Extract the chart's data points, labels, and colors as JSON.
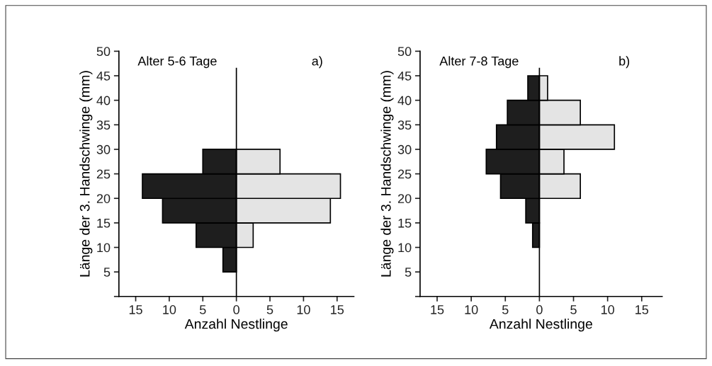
{
  "chart_data": [
    {
      "type": "bar",
      "orientation": "horizontal",
      "stacked": true,
      "title": "Alter 5-6 Tage",
      "annotations": [
        "a)"
      ],
      "xlabel": "Anzahl Nestlinge",
      "ylabel": "Länge der 3. Handschwinge (mm)",
      "x": [
        7.5,
        12.5,
        17.5,
        22.5,
        27.5
      ],
      "series": [
        {
          "color": "#1e1e1e",
          "values": [
            -2,
            -6,
            -11,
            -14,
            -5
          ]
        },
        {
          "color": "#e4e4e4",
          "values": [
            0,
            2.5,
            14,
            15.5,
            6.5
          ]
        }
      ],
      "xlim": [
        -17.5,
        17.5
      ],
      "xticks": [
        {
          "value": -15,
          "label": "15"
        },
        {
          "value": -10,
          "label": "10"
        },
        {
          "value": -5,
          "label": "5"
        },
        0,
        5,
        10,
        15
      ],
      "ylim": [
        0,
        50
      ],
      "yticks": [
        {
          "value": 0,
          "label": null
        },
        5,
        10,
        15,
        20,
        25,
        30,
        35,
        40,
        45,
        50
      ],
      "ref_lines": [
        {
          "axis": "x",
          "value": 0,
          "color": "#000000"
        }
      ],
      "grid": false,
      "legend": false
    },
    {
      "type": "bar",
      "orientation": "horizontal",
      "stacked": true,
      "title": "Alter 7-8 Tage",
      "annotations": [
        "b)"
      ],
      "xlabel": "Anzahl Nestlinge",
      "ylabel": "Länge der 3. Handschwinge (mm)",
      "x": [
        12.5,
        17.5,
        22.5,
        27.5,
        32.5,
        37.5,
        42.5
      ],
      "series": [
        {
          "color": "#1e1e1e",
          "values": [
            -1,
            -2,
            -5.7,
            -7.8,
            -6.3,
            -4.7,
            -1.7
          ]
        },
        {
          "color": "#e4e4e4",
          "values": [
            0,
            0,
            6,
            3.6,
            11,
            6,
            1.2
          ]
        }
      ],
      "xlim": [
        -17.5,
        18
      ],
      "xticks": [
        {
          "value": -15,
          "label": "15"
        },
        {
          "value": -10,
          "label": "10"
        },
        {
          "value": -5,
          "label": "5"
        },
        0,
        5,
        10,
        15
      ],
      "ylim": [
        0,
        50
      ],
      "yticks": [
        {
          "value": 0,
          "label": null
        },
        5,
        10,
        15,
        20,
        25,
        30,
        35,
        40,
        45,
        50
      ],
      "ref_lines": [
        {
          "axis": "x",
          "value": 0,
          "color": "#000000"
        }
      ],
      "grid": false,
      "legend": false
    }
  ]
}
